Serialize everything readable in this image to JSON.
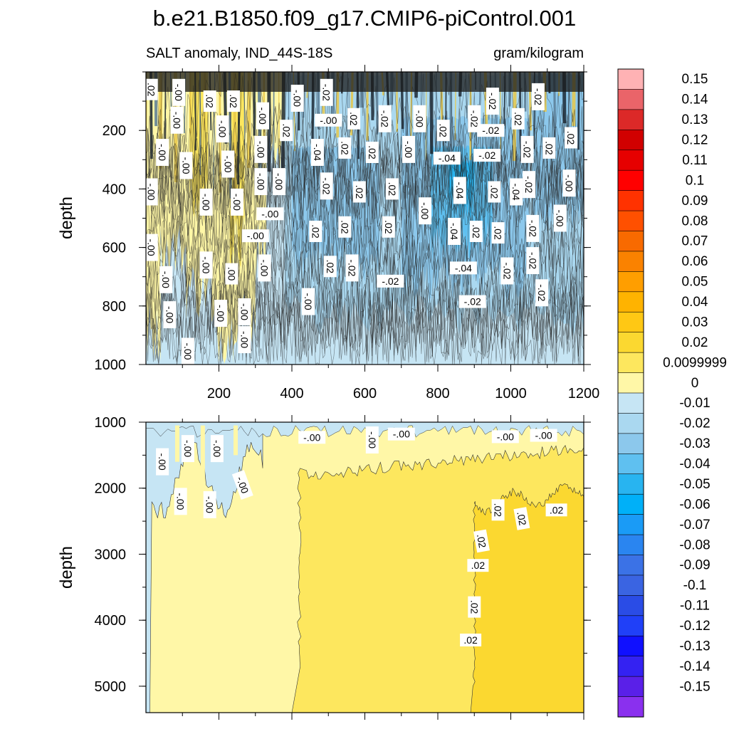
{
  "chart_data": {
    "type": "heatmap",
    "title": "b.e21.B1850.f09_g17.CMIP6-piControl.001",
    "left_subtitle": "SALT anomaly, IND_44S-18S",
    "right_subtitle": "gram/kilogram",
    "xlim": [
      0,
      1200
    ],
    "x_ticks": [
      "200",
      "400",
      "600",
      "800",
      "1000",
      "1200"
    ],
    "panels": [
      {
        "name": "upper",
        "ylabel": "depth",
        "ylim": [
          1000,
          0
        ],
        "y_ticks": [
          "200",
          "400",
          "600",
          "800",
          "1000"
        ],
        "contour_labels": [
          {
            "text": ".02",
            "x": 15,
            "y": 60,
            "rot": 90
          },
          {
            "text": "-.00",
            "x": 90,
            "y": 70,
            "rot": 90
          },
          {
            "text": ".02",
            "x": 175,
            "y": 100,
            "rot": 90
          },
          {
            "text": ".02",
            "x": 240,
            "y": 100,
            "rot": 90
          },
          {
            "text": "-.00",
            "x": 415,
            "y": 90,
            "rot": 90
          },
          {
            "text": "-.02",
            "x": 495,
            "y": 70,
            "rot": 90
          },
          {
            "text": "-.00",
            "x": 320,
            "y": 150,
            "rot": 90
          },
          {
            "text": "-.00",
            "x": 500,
            "y": 165,
            "rot": 0
          },
          {
            "text": ".02",
            "x": 570,
            "y": 160,
            "rot": 90
          },
          {
            "text": "-.02",
            "x": 655,
            "y": 160,
            "rot": 90
          },
          {
            "text": "-.00",
            "x": 750,
            "y": 160,
            "rot": 90
          },
          {
            "text": "-.02",
            "x": 900,
            "y": 160,
            "rot": 90
          },
          {
            "text": "-.02",
            "x": 950,
            "y": 100,
            "rot": 90
          },
          {
            "text": ".02",
            "x": 1020,
            "y": 160,
            "rot": 90
          },
          {
            "text": "-.02",
            "x": 1075,
            "y": 85,
            "rot": 90
          },
          {
            "text": "-.00",
            "x": 85,
            "y": 165,
            "rot": 90
          },
          {
            "text": "-.00",
            "x": 210,
            "y": 195,
            "rot": 90
          },
          {
            "text": ".02",
            "x": 385,
            "y": 200,
            "rot": 90
          },
          {
            "text": ".02",
            "x": 815,
            "y": 200,
            "rot": 90
          },
          {
            "text": "-.02",
            "x": 945,
            "y": 200,
            "rot": 0
          },
          {
            "text": "-.00",
            "x": 45,
            "y": 275,
            "rot": 90
          },
          {
            "text": "-.00",
            "x": 110,
            "y": 320,
            "rot": 90
          },
          {
            "text": "-.00",
            "x": 315,
            "y": 265,
            "rot": 90
          },
          {
            "text": "-.04",
            "x": 470,
            "y": 275,
            "rot": 90
          },
          {
            "text": ".02",
            "x": 545,
            "y": 260,
            "rot": 90
          },
          {
            "text": ".02",
            "x": 620,
            "y": 275,
            "rot": 90
          },
          {
            "text": "-.00",
            "x": 720,
            "y": 265,
            "rot": 90
          },
          {
            "text": "-.04",
            "x": 825,
            "y": 295,
            "rot": 0
          },
          {
            "text": "-.02",
            "x": 935,
            "y": 285,
            "rot": 0
          },
          {
            "text": "-.02",
            "x": 1045,
            "y": 265,
            "rot": 90
          },
          {
            "text": ".02",
            "x": 1105,
            "y": 260,
            "rot": 90
          },
          {
            "text": ".02",
            "x": 1165,
            "y": 225,
            "rot": 90
          },
          {
            "text": "-.00",
            "x": 225,
            "y": 315,
            "rot": 90
          },
          {
            "text": "-.00",
            "x": 315,
            "y": 375,
            "rot": 90
          },
          {
            "text": "-.00",
            "x": 365,
            "y": 375,
            "rot": 90
          },
          {
            "text": "-.02",
            "x": 495,
            "y": 390,
            "rot": 90
          },
          {
            "text": ".02",
            "x": 585,
            "y": 410,
            "rot": 90
          },
          {
            "text": ".02",
            "x": 675,
            "y": 400,
            "rot": 90
          },
          {
            "text": "-.02",
            "x": 1050,
            "y": 385,
            "rot": 90
          },
          {
            "text": "-.04",
            "x": 860,
            "y": 405,
            "rot": 90
          },
          {
            "text": ".02",
            "x": 955,
            "y": 410,
            "rot": 90
          },
          {
            "text": "-.04",
            "x": 1015,
            "y": 410,
            "rot": 90
          },
          {
            "text": "-.00",
            "x": 1160,
            "y": 380,
            "rot": 90
          },
          {
            "text": "-.00",
            "x": 15,
            "y": 410,
            "rot": 90
          },
          {
            "text": "-.00",
            "x": 165,
            "y": 445,
            "rot": 90
          },
          {
            "text": "-.00",
            "x": 250,
            "y": 445,
            "rot": 90
          },
          {
            "text": "-.00",
            "x": 340,
            "y": 485,
            "rot": 0
          },
          {
            "text": "-.00",
            "x": 765,
            "y": 475,
            "rot": 90
          },
          {
            "text": ".02",
            "x": 465,
            "y": 545,
            "rot": 90
          },
          {
            "text": ".02",
            "x": 545,
            "y": 530,
            "rot": 90
          },
          {
            "text": ".02",
            "x": 665,
            "y": 530,
            "rot": 90
          },
          {
            "text": "-.04",
            "x": 845,
            "y": 545,
            "rot": 90
          },
          {
            "text": ".02",
            "x": 905,
            "y": 545,
            "rot": 90
          },
          {
            "text": ".02",
            "x": 965,
            "y": 550,
            "rot": 90
          },
          {
            "text": "-.02",
            "x": 1060,
            "y": 535,
            "rot": 90
          },
          {
            "text": "-.00",
            "x": 1135,
            "y": 500,
            "rot": 90
          },
          {
            "text": "-.00",
            "x": 300,
            "y": 560,
            "rot": 0
          },
          {
            "text": "-.00",
            "x": 15,
            "y": 600,
            "rot": 90
          },
          {
            "text": "-.02",
            "x": 1060,
            "y": 645,
            "rot": 90
          },
          {
            "text": "-.00",
            "x": 165,
            "y": 660,
            "rot": 90
          },
          {
            "text": ".00",
            "x": 235,
            "y": 690,
            "rot": 90
          },
          {
            "text": "-.00",
            "x": 325,
            "y": 670,
            "rot": 90
          },
          {
            "text": ".02",
            "x": 505,
            "y": 665,
            "rot": 90
          },
          {
            "text": "-.02",
            "x": 565,
            "y": 670,
            "rot": 90
          },
          {
            "text": "-.04",
            "x": 870,
            "y": 670,
            "rot": 0
          },
          {
            "text": "-.02",
            "x": 990,
            "y": 680,
            "rot": 90
          },
          {
            "text": "-.00",
            "x": 55,
            "y": 710,
            "rot": 90
          },
          {
            "text": "-.02",
            "x": 670,
            "y": 715,
            "rot": 0
          },
          {
            "text": "-.00",
            "x": 445,
            "y": 785,
            "rot": 90
          },
          {
            "text": "-.02",
            "x": 1085,
            "y": 755,
            "rot": 90
          },
          {
            "text": "-.02",
            "x": 895,
            "y": 785,
            "rot": 0
          },
          {
            "text": "-.00",
            "x": 65,
            "y": 830,
            "rot": 90
          },
          {
            "text": "-.00",
            "x": 205,
            "y": 825,
            "rot": 90
          },
          {
            "text": "-.00",
            "x": 270,
            "y": 820,
            "rot": 90
          },
          {
            "text": "-.00",
            "x": 270,
            "y": 915,
            "rot": 90
          },
          {
            "text": "-.00",
            "x": 115,
            "y": 955,
            "rot": 90
          }
        ]
      },
      {
        "name": "lower",
        "ylabel": "depth",
        "ylim": [
          5400,
          1000
        ],
        "y_ticks": [
          "1000",
          "2000",
          "3000",
          "4000",
          "5000"
        ],
        "contour_labels": [
          {
            "text": "-.00",
            "x": 45,
            "y": 1600,
            "rot": 90
          },
          {
            "text": "-.00",
            "x": 115,
            "y": 1400,
            "rot": 90
          },
          {
            "text": "-.00",
            "x": 195,
            "y": 1400,
            "rot": 90
          },
          {
            "text": "-.00",
            "x": 265,
            "y": 1950,
            "rot": 70
          },
          {
            "text": "-.00",
            "x": 95,
            "y": 2200,
            "rot": 90
          },
          {
            "text": "-.00",
            "x": 175,
            "y": 2250,
            "rot": 90
          },
          {
            "text": "-.00",
            "x": 455,
            "y": 1230,
            "rot": 0
          },
          {
            "text": "-.00",
            "x": 620,
            "y": 1270,
            "rot": 90
          },
          {
            "text": "-.00",
            "x": 700,
            "y": 1180,
            "rot": 0
          },
          {
            "text": "-.00",
            "x": 985,
            "y": 1220,
            "rot": 0
          },
          {
            "text": "-.00",
            "x": 1090,
            "y": 1200,
            "rot": 0
          },
          {
            "text": ".02",
            "x": 965,
            "y": 2330,
            "rot": 90
          },
          {
            "text": ".02",
            "x": 1030,
            "y": 2460,
            "rot": 80
          },
          {
            "text": ".02",
            "x": 1125,
            "y": 2330,
            "rot": 0
          },
          {
            "text": ".02",
            "x": 920,
            "y": 2800,
            "rot": 80
          },
          {
            "text": ".02",
            "x": 910,
            "y": 3170,
            "rot": 0
          },
          {
            "text": ".02",
            "x": 900,
            "y": 3800,
            "rot": 90
          },
          {
            "text": ".02",
            "x": 890,
            "y": 4300,
            "rot": 0
          }
        ]
      }
    ],
    "colorbar": {
      "labels": [
        "0.15",
        "0.14",
        "0.13",
        "0.12",
        "0.11",
        "0.1",
        "0.09",
        "0.08",
        "0.07",
        "0.06",
        "0.05",
        "0.04",
        "0.03",
        "0.02",
        "0.0099999",
        "0",
        "-0.01",
        "-0.02",
        "-0.03",
        "-0.04",
        "-0.05",
        "-0.06",
        "-0.07",
        "-0.08",
        "-0.09",
        "-0.1",
        "-0.11",
        "-0.12",
        "-0.13",
        "-0.14",
        "-0.15"
      ],
      "colors": [
        "#ffb2b4",
        "#ea6469",
        "#dc2928",
        "#d10000",
        "#e60000",
        "#ff0000",
        "#ff3200",
        "#ff5000",
        "#f86a00",
        "#fa8200",
        "#ff9e00",
        "#ffb300",
        "#ffc814",
        "#fbd830",
        "#fde75e",
        "#fff7a7",
        "#c6e5f4",
        "#aad8f0",
        "#8cc8ec",
        "#5fc0f0",
        "#28b4f0",
        "#00b0f8",
        "#1a9bf6",
        "#2a85f0",
        "#3b72e6",
        "#3a64e2",
        "#2a4ce6",
        "#2040f8",
        "#1010ff",
        "#3422f2",
        "#5a20e8",
        "#8a30ee"
      ]
    }
  }
}
